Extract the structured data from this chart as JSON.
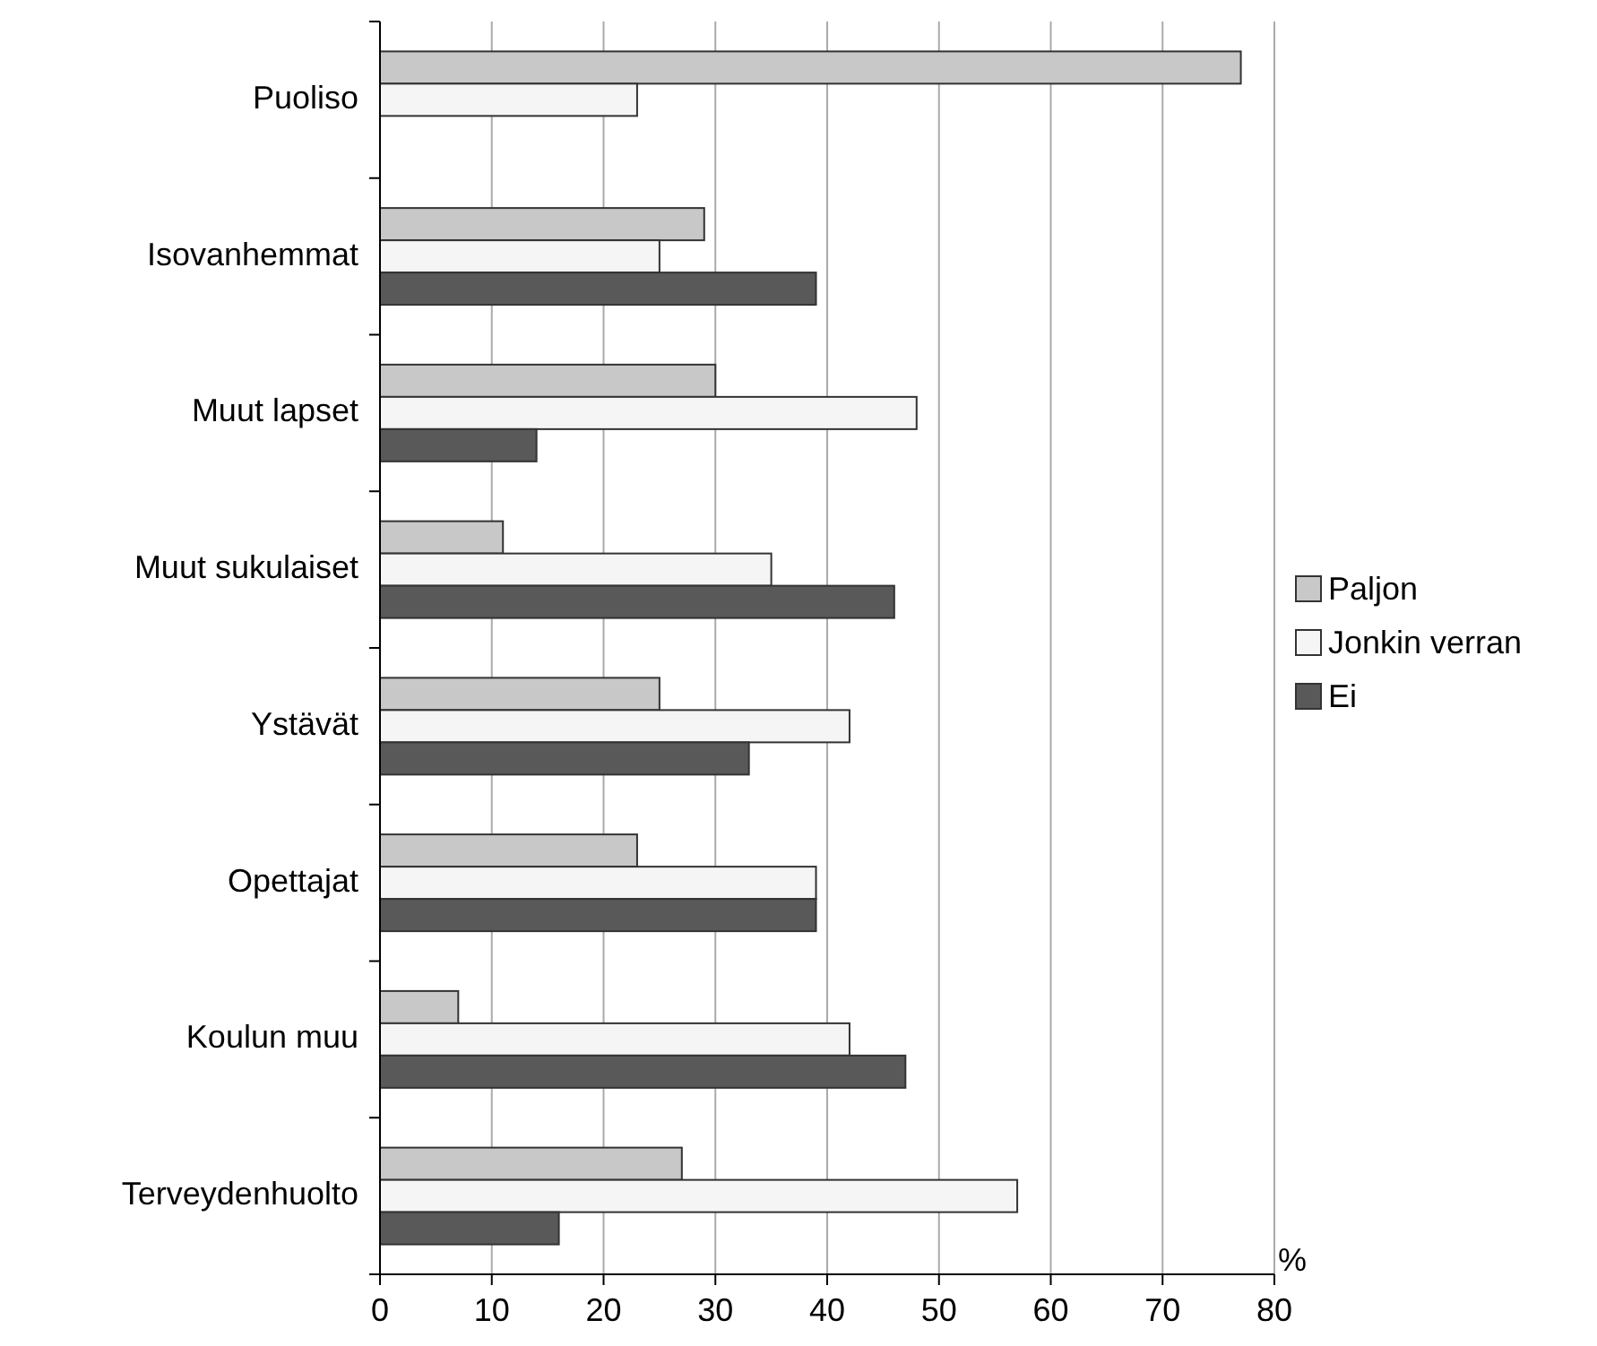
{
  "chart_data": {
    "type": "bar",
    "orientation": "horizontal",
    "xlabel": "%",
    "categories": [
      "Puoliso",
      "Isovanhemmat",
      "Muut lapset",
      "Muut sukulaiset",
      "Ystävät",
      "Opettajat",
      "Koulun muu",
      "Terveydenhuolto"
    ],
    "series": [
      {
        "name": "Paljon",
        "color": "#c8c8c8",
        "values": [
          77,
          29,
          30,
          11,
          25,
          23,
          7,
          27
        ]
      },
      {
        "name": "Jonkin verran",
        "color": "#f5f5f5",
        "values": [
          23,
          25,
          48,
          35,
          42,
          39,
          42,
          57
        ]
      },
      {
        "name": "Ei",
        "color": "#595959",
        "values": [
          null,
          39,
          14,
          46,
          33,
          39,
          47,
          16
        ]
      }
    ],
    "xlim": [
      0,
      80
    ],
    "xticks": [
      0,
      10,
      20,
      30,
      40,
      50,
      60,
      70,
      80
    ],
    "grid": "x",
    "legend": "right"
  }
}
